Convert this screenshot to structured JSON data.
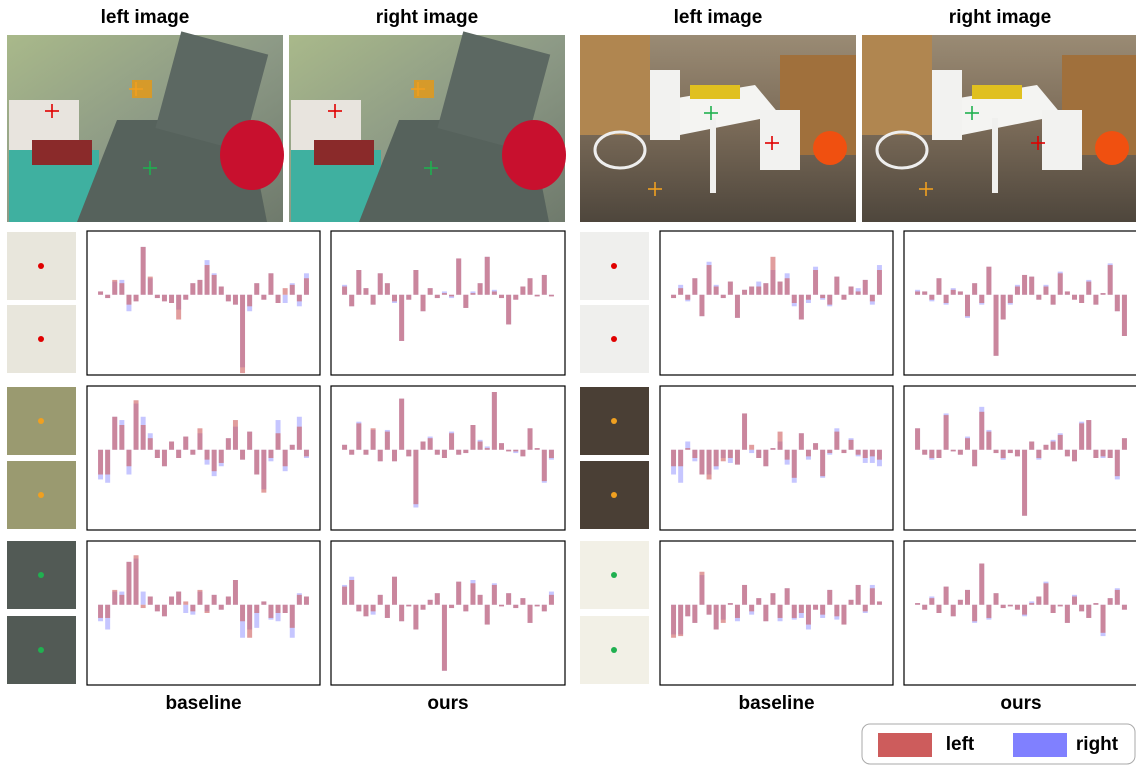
{
  "panels": [
    {
      "headers": [
        "left image",
        "right image"
      ],
      "footers": [
        "baseline",
        "ours"
      ],
      "rows": [
        {
          "baseline": {
            "left": [
              4,
              -4,
              18,
              14,
              -12,
              -8,
              58,
              22,
              -4,
              -8,
              -10,
              -30,
              -6,
              14,
              18,
              36,
              24,
              10,
              -8,
              -12,
              -95,
              -14,
              14,
              -6,
              26,
              -10,
              8,
              12,
              -8,
              20
            ],
            "right": [
              4,
              -4,
              16,
              18,
              -20,
              -8,
              58,
              20,
              -4,
              -8,
              -10,
              -18,
              -6,
              14,
              18,
              42,
              26,
              10,
              -8,
              -12,
              -88,
              -20,
              14,
              -6,
              26,
              -10,
              -10,
              14,
              -14,
              26
            ]
          },
          "ours": {
            "left": [
              10,
              -14,
              30,
              8,
              -12,
              26,
              14,
              -8,
              -56,
              -6,
              30,
              -20,
              8,
              -4,
              2,
              -2,
              44,
              -16,
              2,
              14,
              46,
              4,
              -4,
              -36,
              -6,
              10,
              20,
              -2,
              24,
              -2
            ],
            "right": [
              12,
              -14,
              30,
              8,
              -12,
              26,
              14,
              -10,
              -56,
              -6,
              30,
              -20,
              8,
              -4,
              4,
              -4,
              44,
              -16,
              4,
              14,
              46,
              6,
              -4,
              -36,
              -6,
              10,
              20,
              -2,
              24,
              -2
            ]
          }
        },
        {
          "baseline": {
            "left": [
              -30,
              -30,
              40,
              30,
              -20,
              60,
              30,
              14,
              -10,
              -20,
              10,
              -10,
              16,
              -6,
              26,
              -12,
              -26,
              -16,
              14,
              36,
              -12,
              22,
              -30,
              -52,
              -10,
              20,
              -20,
              6,
              28,
              -8
            ],
            "right": [
              -36,
              -40,
              40,
              36,
              -30,
              56,
              40,
              20,
              -10,
              -20,
              10,
              -10,
              16,
              -6,
              20,
              -18,
              -32,
              -20,
              14,
              28,
              -12,
              22,
              -30,
              -48,
              -14,
              36,
              -26,
              6,
              40,
              -10
            ]
          },
          "ours": {
            "left": [
              6,
              -6,
              32,
              -6,
              26,
              -14,
              22,
              -14,
              62,
              -8,
              -66,
              10,
              14,
              -6,
              -10,
              20,
              -6,
              -4,
              30,
              10,
              2,
              70,
              8,
              -2,
              -2,
              -8,
              26,
              2,
              -38,
              -10
            ],
            "right": [
              6,
              -6,
              34,
              -6,
              24,
              -14,
              24,
              -14,
              62,
              -8,
              -70,
              10,
              16,
              -6,
              -10,
              22,
              -6,
              -4,
              30,
              12,
              4,
              70,
              8,
              -2,
              -4,
              -8,
              26,
              2,
              -40,
              -12
            ]
          }
        },
        {
          "baseline": {
            "left": [
              -16,
              -16,
              18,
              12,
              52,
              60,
              -4,
              10,
              -8,
              -14,
              10,
              16,
              4,
              -8,
              18,
              -10,
              12,
              -6,
              10,
              30,
              -20,
              -40,
              -10,
              4,
              -16,
              -10,
              -10,
              -28,
              12,
              10
            ],
            "right": [
              -20,
              -30,
              16,
              16,
              52,
              56,
              16,
              10,
              -8,
              -14,
              10,
              16,
              -10,
              -12,
              16,
              -8,
              12,
              -6,
              10,
              30,
              -40,
              -30,
              -28,
              4,
              -18,
              -20,
              -10,
              -40,
              14,
              10
            ]
          },
          "ours": {
            "left": [
              22,
              30,
              -8,
              -14,
              -8,
              12,
              -16,
              34,
              -20,
              -2,
              -30,
              -6,
              6,
              14,
              -80,
              -4,
              28,
              -8,
              26,
              12,
              -24,
              24,
              -2,
              14,
              -4,
              8,
              -22,
              -2,
              -8,
              12
            ],
            "right": [
              24,
              34,
              -8,
              -14,
              -12,
              12,
              -16,
              34,
              -20,
              -2,
              -30,
              -6,
              6,
              14,
              -80,
              -4,
              28,
              -8,
              30,
              12,
              -24,
              26,
              -2,
              14,
              -4,
              8,
              -22,
              -2,
              -8,
              16
            ]
          }
        }
      ]
    },
    {
      "headers": [
        "left image",
        "right image"
      ],
      "footers": [
        "baseline",
        "ours"
      ],
      "rows": [
        {
          "baseline": {
            "left": [
              -4,
              8,
              -6,
              20,
              -26,
              36,
              10,
              -4,
              16,
              -28,
              6,
              10,
              10,
              14,
              46,
              16,
              20,
              -10,
              -30,
              -6,
              30,
              -4,
              -12,
              22,
              -6,
              10,
              4,
              18,
              -8,
              30
            ],
            "right": [
              -4,
              12,
              -8,
              20,
              -26,
              40,
              12,
              -4,
              16,
              -28,
              6,
              10,
              16,
              14,
              30,
              16,
              26,
              -14,
              -30,
              -10,
              34,
              -6,
              -14,
              22,
              -6,
              10,
              8,
              18,
              -12,
              36
            ]
          },
          "ours": {
            "left": [
              4,
              4,
              -6,
              20,
              -10,
              6,
              4,
              -26,
              14,
              -10,
              34,
              -74,
              -30,
              -10,
              10,
              24,
              22,
              -6,
              10,
              -12,
              26,
              4,
              -6,
              -10,
              16,
              -12,
              2,
              36,
              -20,
              -50
            ],
            "right": [
              6,
              4,
              -8,
              20,
              -12,
              8,
              4,
              -28,
              14,
              -12,
              34,
              -74,
              -30,
              -12,
              12,
              24,
              22,
              -6,
              12,
              -12,
              28,
              4,
              -6,
              -10,
              18,
              -12,
              2,
              38,
              -20,
              -50
            ]
          }
        },
        {
          "baseline": {
            "left": [
              -20,
              -20,
              2,
              -10,
              -30,
              -36,
              -20,
              -14,
              -10,
              -18,
              44,
              6,
              -10,
              -20,
              2,
              22,
              -12,
              -34,
              20,
              -8,
              8,
              -32,
              -4,
              22,
              -4,
              12,
              -6,
              -10,
              -8,
              -12
            ],
            "right": [
              -30,
              -40,
              10,
              -14,
              -30,
              -30,
              -24,
              -10,
              -16,
              -18,
              44,
              -4,
              -10,
              -20,
              2,
              10,
              -18,
              -40,
              20,
              -12,
              8,
              -34,
              -6,
              26,
              -4,
              14,
              -8,
              -16,
              -16,
              -20
            ]
          },
          "ours": {
            "left": [
              26,
              -6,
              -10,
              -10,
              42,
              -2,
              -6,
              14,
              -20,
              46,
              22,
              -4,
              -10,
              -4,
              -8,
              -80,
              10,
              -10,
              6,
              10,
              18,
              -8,
              -14,
              32,
              36,
              -10,
              -8,
              -10,
              -32,
              14
            ],
            "right": [
              26,
              -6,
              -12,
              -10,
              44,
              -2,
              -6,
              16,
              -20,
              52,
              24,
              -4,
              -12,
              -4,
              -8,
              -80,
              10,
              -12,
              6,
              12,
              20,
              -8,
              -14,
              34,
              36,
              -10,
              -10,
              -10,
              -36,
              14
            ]
          }
        },
        {
          "baseline": {
            "left": [
              -40,
              -38,
              -14,
              -22,
              40,
              -12,
              -30,
              -22,
              2,
              -16,
              24,
              -8,
              8,
              -20,
              14,
              -16,
              20,
              -16,
              -10,
              -24,
              -6,
              -12,
              18,
              -14,
              -24,
              6,
              24,
              -8,
              20,
              4
            ],
            "right": [
              -36,
              -36,
              -14,
              -22,
              36,
              -12,
              -30,
              -18,
              2,
              -20,
              24,
              -12,
              8,
              -20,
              14,
              -20,
              20,
              -18,
              -16,
              -30,
              -6,
              -16,
              18,
              -18,
              -24,
              6,
              24,
              -10,
              24,
              4
            ]
          },
          "ours": {
            "left": [
              2,
              -6,
              8,
              -10,
              22,
              -14,
              6,
              18,
              -20,
              50,
              -16,
              14,
              -4,
              -2,
              -6,
              -12,
              2,
              10,
              26,
              -10,
              -2,
              -22,
              10,
              -8,
              -16,
              2,
              -34,
              8,
              18,
              -6
            ],
            "right": [
              2,
              -6,
              10,
              -10,
              22,
              -14,
              6,
              18,
              -22,
              50,
              -18,
              14,
              -4,
              -2,
              -6,
              -14,
              4,
              10,
              28,
              -10,
              -2,
              -22,
              12,
              -8,
              -16,
              2,
              -38,
              8,
              20,
              -6
            ]
          }
        }
      ]
    }
  ],
  "ylim": [
    -90,
    70
  ],
  "legend": [
    {
      "name": "left",
      "color": "#cd5c5c"
    },
    {
      "name": "right",
      "color": "#8080ff"
    }
  ]
}
